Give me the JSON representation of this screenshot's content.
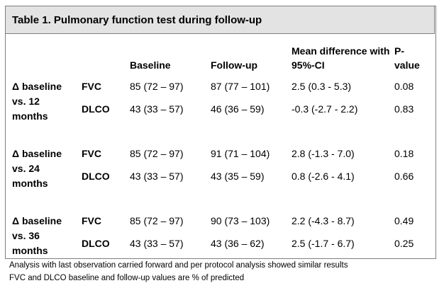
{
  "title": "Table 1. Pulmonary function test during follow-up",
  "table": {
    "header": [
      "Baseline",
      "Follow-up",
      "Mean difference with 95%-CI",
      "P-value"
    ],
    "groups": [
      {
        "label": "Δ baseline vs. 12 months",
        "rows": [
          [
            "FVC",
            "85 (72 – 97)",
            "87 (77 – 101)",
            "2.5 (0.3 - 5.3)",
            "0.08"
          ],
          [
            "DLCO",
            "43 (33 – 57)",
            "46 (36 – 59)",
            "-0.3 (-2.7 - 2.2)",
            "0.83"
          ]
        ]
      },
      {
        "label": "Δ baseline vs. 24 months",
        "rows": [
          [
            "FVC",
            "85 (72 – 97)",
            "91 (71 – 104)",
            "2.8 (-1.3 - 7.0)",
            "0.18"
          ],
          [
            "DLCO",
            "43 (33 – 57)",
            "43 (35 – 59)",
            "0.8 (-2.6 - 4.1)",
            "0.66"
          ]
        ]
      },
      {
        "label": "Δ baseline vs. 36 months",
        "rows": [
          [
            "FVC",
            "85 (72 – 97)",
            "90 (73 – 103)",
            "2.2 (-4.3 - 8.7)",
            "0.49"
          ],
          [
            "DLCO",
            "43 (33 – 57)",
            "43 (36 – 62)",
            "2.5 (-1.7 - 6.7)",
            "0.25"
          ]
        ]
      }
    ]
  },
  "notes": [
    "Analysis with last observation carried forward and per protocol analysis showed similar results",
    "FVC and DLCO baseline and follow-up values are % of predicted"
  ]
}
